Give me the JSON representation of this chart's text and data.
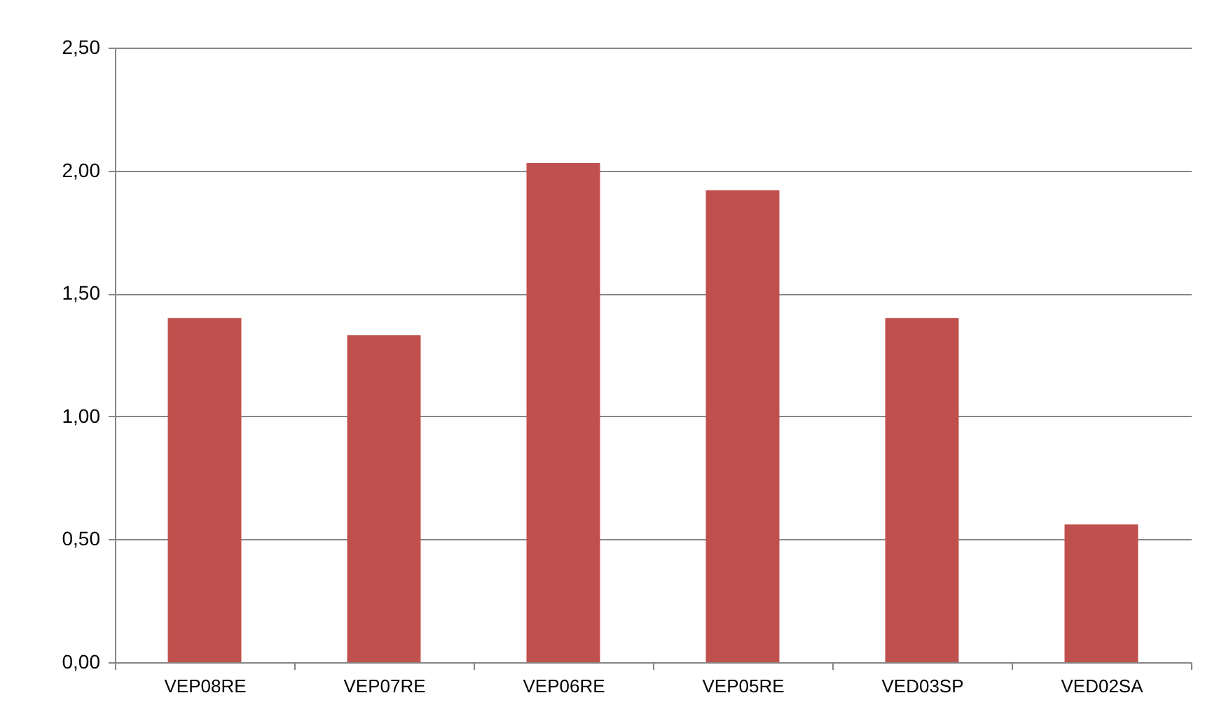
{
  "chart_data": {
    "type": "bar",
    "categories": [
      "VEP08RE",
      "VEP07RE",
      "VEP06RE",
      "VEP05RE",
      "VED03SP",
      "VED02SA"
    ],
    "values": [
      1.4,
      1.33,
      2.03,
      1.92,
      1.4,
      0.56
    ],
    "color": "#c0504d",
    "ylim": [
      0,
      2.5
    ],
    "yticks": [
      {
        "value": 0,
        "label": "0,00"
      },
      {
        "value": 0.5,
        "label": "0,50"
      },
      {
        "value": 1,
        "label": "1,00"
      },
      {
        "value": 1.5,
        "label": "1,50"
      },
      {
        "value": 2,
        "label": "2,00"
      },
      {
        "value": 2.5,
        "label": "2,50"
      }
    ],
    "grid": "y"
  }
}
